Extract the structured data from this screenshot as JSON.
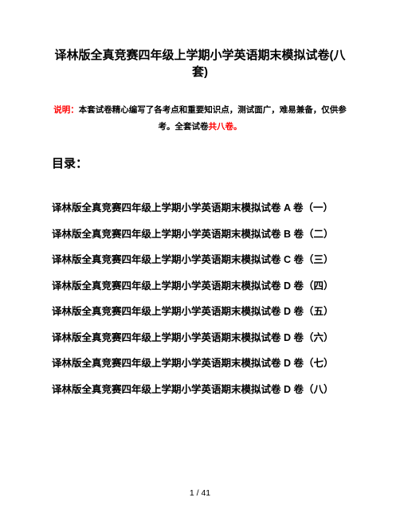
{
  "title": "译林版全真竞赛四年级上学期小学英语期末模拟试卷(八套)",
  "desc": {
    "label": "说明：",
    "body_a": "本套试卷精心编写了各考点和重要知识点，测试面广，难易兼备，仅供参考。全套试卷",
    "red_tail": "共八卷。"
  },
  "toc_head": "目录：",
  "toc": [
    "译林版全真竞赛四年级上学期小学英语期末模拟试卷 A 卷（一）",
    "译林版全真竞赛四年级上学期小学英语期末模拟试卷 B 卷（二）",
    "译林版全真竞赛四年级上学期小学英语期末模拟试卷 C 卷（三）",
    "译林版全真竞赛四年级上学期小学英语期末模拟试卷 D 卷（四）",
    "译林版全真竞赛四年级上学期小学英语期末模拟试卷 D 卷（五）",
    "译林版全真竞赛四年级上学期小学英语期末模拟试卷 D 卷（六）",
    "译林版全真竞赛四年级上学期小学英语期末模拟试卷 D 卷（七）",
    "译林版全真竞赛四年级上学期小学英语期末模拟试卷 D 卷（八）"
  ],
  "footer": "1 / 41",
  "colors": {
    "text": "#000000",
    "red": "#ff0000",
    "background": "#ffffff"
  }
}
